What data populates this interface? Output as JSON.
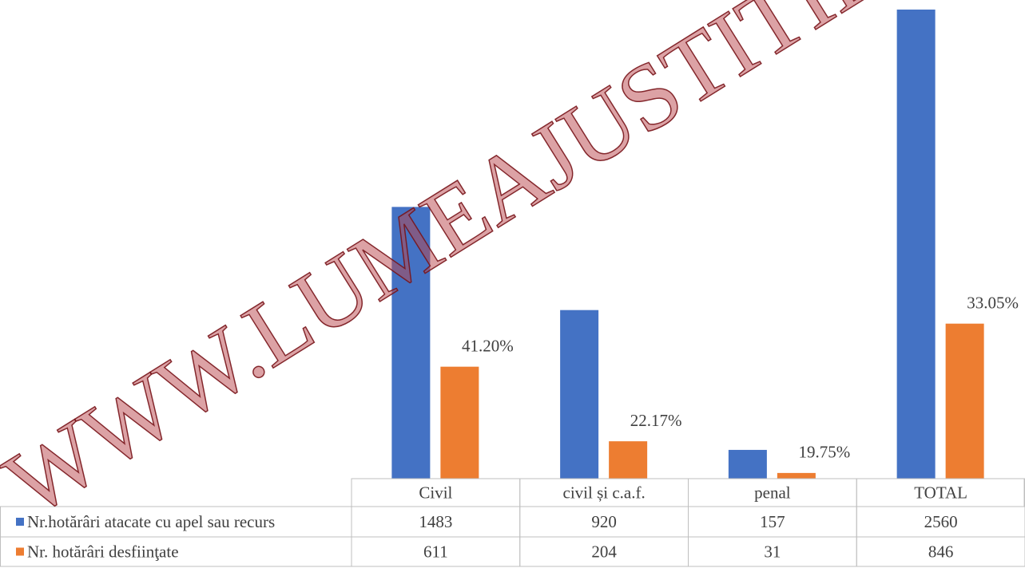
{
  "chart_data": {
    "type": "bar",
    "categories": [
      "Civil",
      "civil și c.a.f.",
      "penal",
      "TOTAL"
    ],
    "series": [
      {
        "name": "Nr.hotărâri atacate cu apel sau recurs",
        "color": "#4472c4",
        "values": [
          1483,
          920,
          157,
          2560
        ]
      },
      {
        "name": "Nr. hotărâri desfiinţate",
        "color": "#ed7d31",
        "values": [
          611,
          204,
          31,
          846
        ]
      }
    ],
    "annotations": [
      "41.20%",
      "22.17%",
      "19.75%",
      "33.05%"
    ],
    "ylim": [
      0,
      2560
    ],
    "watermark": "WWW.LUMEAJUSTITIEI.RO"
  }
}
